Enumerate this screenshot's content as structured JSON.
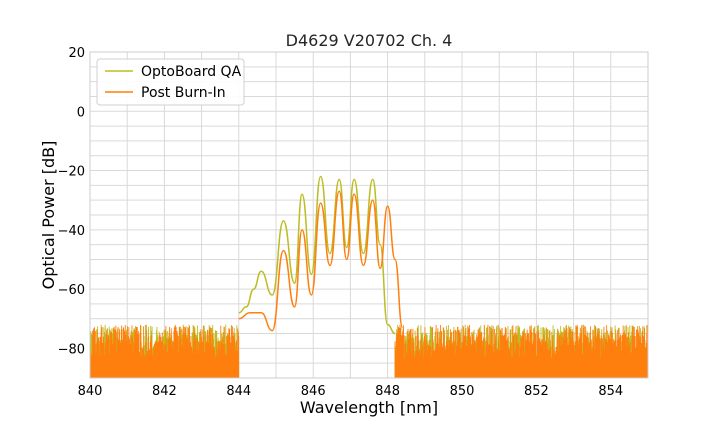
{
  "chart_data": {
    "type": "line",
    "title": "D4629 V20702 Ch. 4",
    "xlabel": "Wavelength [nm]",
    "ylabel": "Optical Power [dB]",
    "xlim": [
      840,
      855
    ],
    "ylim": [
      -90,
      20
    ],
    "xticks": [
      840,
      842,
      844,
      846,
      848,
      850,
      852,
      854
    ],
    "yticks": [
      20,
      0,
      -20,
      -40,
      -60,
      -80
    ],
    "grid": true,
    "legend_position": "top-left",
    "series": [
      {
        "name": "OptoBoard QA",
        "color": "#bcbd22",
        "peaks": [
          [
            844.6,
            -54
          ],
          [
            845.2,
            -37
          ],
          [
            845.7,
            -28
          ],
          [
            846.2,
            -22
          ],
          [
            846.7,
            -23
          ],
          [
            847.1,
            -23
          ],
          [
            847.6,
            -23
          ]
        ],
        "points": [
          [
            844.0,
            -68
          ],
          [
            844.2,
            -66
          ],
          [
            844.4,
            -60
          ],
          [
            844.6,
            -54
          ],
          [
            844.9,
            -62
          ],
          [
            845.2,
            -37
          ],
          [
            845.5,
            -58
          ],
          [
            845.7,
            -28
          ],
          [
            845.95,
            -55
          ],
          [
            846.2,
            -22
          ],
          [
            846.45,
            -48
          ],
          [
            846.7,
            -23
          ],
          [
            846.9,
            -46
          ],
          [
            847.1,
            -23
          ],
          [
            847.35,
            -48
          ],
          [
            847.6,
            -23
          ],
          [
            847.8,
            -45
          ],
          [
            848.0,
            -72
          ],
          [
            848.2,
            -75
          ]
        ]
      },
      {
        "name": "Post Burn-In",
        "color": "#ff7f0e",
        "peaks": [
          [
            844.6,
            -68
          ],
          [
            845.2,
            -47
          ],
          [
            845.7,
            -40
          ],
          [
            846.2,
            -31
          ],
          [
            846.7,
            -27
          ],
          [
            847.1,
            -28
          ],
          [
            847.6,
            -30
          ],
          [
            848.0,
            -32
          ]
        ],
        "points": [
          [
            844.0,
            -70
          ],
          [
            844.3,
            -68
          ],
          [
            844.6,
            -68
          ],
          [
            844.9,
            -74
          ],
          [
            845.2,
            -47
          ],
          [
            845.5,
            -66
          ],
          [
            845.7,
            -40
          ],
          [
            845.95,
            -62
          ],
          [
            846.2,
            -31
          ],
          [
            846.45,
            -52
          ],
          [
            846.7,
            -27
          ],
          [
            846.9,
            -50
          ],
          [
            847.1,
            -28
          ],
          [
            847.35,
            -52
          ],
          [
            847.6,
            -30
          ],
          [
            847.8,
            -53
          ],
          [
            848.0,
            -32
          ],
          [
            848.2,
            -50
          ],
          [
            848.4,
            -73
          ]
        ]
      }
    ],
    "noise_floor": {
      "range_left": [
        840,
        844.0
      ],
      "range_right": [
        848.2,
        855
      ],
      "level_top": -72,
      "level_bottom": -90
    }
  }
}
